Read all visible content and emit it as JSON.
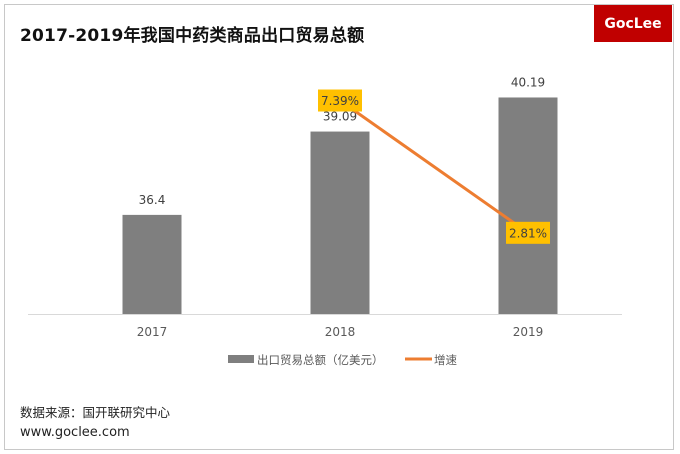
{
  "title": "2017-2019年我国中药类商品出口贸易总额",
  "logo": {
    "text": "GocLee",
    "bg_color": "#c00000"
  },
  "footer": {
    "source": "数据来源：国开联研究中心",
    "url": "www.goclee.com"
  },
  "chart_data": {
    "type": "bar",
    "title": "2017-2019年我国中药类商品出口贸易总额",
    "categories": [
      "2017",
      "2018",
      "2019"
    ],
    "series": [
      {
        "name": "出口贸易总额（亿美元）",
        "type": "bar",
        "color": "#7f7f7f",
        "values": [
          36.4,
          39.09,
          40.19
        ],
        "labels": [
          "36.4",
          "39.09",
          "40.19"
        ]
      },
      {
        "name": "增速",
        "type": "line",
        "color": "#ed7d31",
        "label_bg": "#ffc000",
        "x": [
          "2018",
          "2019"
        ],
        "values": [
          7.39,
          2.81
        ],
        "labels": [
          "7.39%",
          "2.81%"
        ]
      }
    ],
    "xlabel": "",
    "ylabel": "",
    "ylim": [
      33.2,
      41.4
    ],
    "y2lim": [
      0,
      9
    ],
    "grid": false,
    "legend_position": "bottom"
  }
}
